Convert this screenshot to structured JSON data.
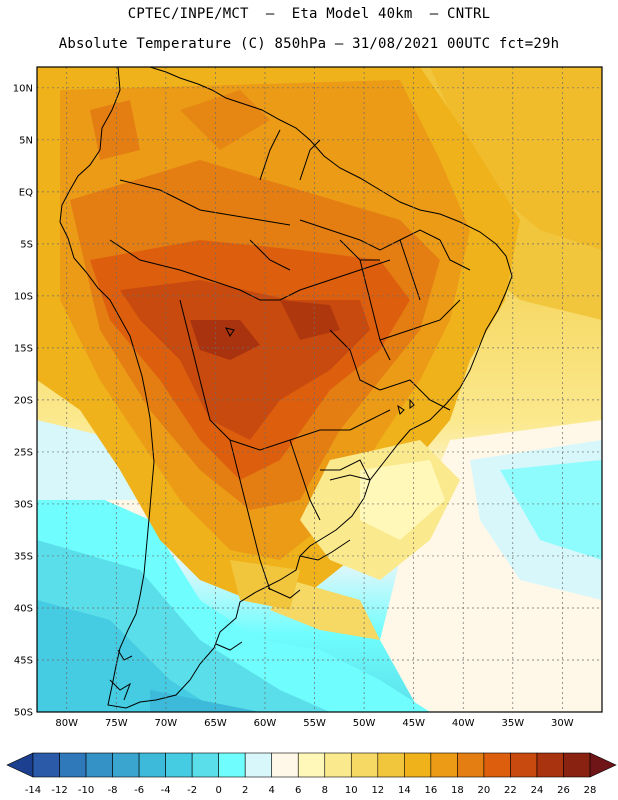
{
  "title": {
    "line1": "CPTEC/INPE/MCT  –  Eta Model 40km  – CNTRL",
    "line2": "Absolute Temperature (C) 850hPa – 31/08/2021 00UTC fct=29h"
  },
  "map": {
    "lat_labels": [
      "10N",
      "5N",
      "EQ",
      "5S",
      "10S",
      "15S",
      "20S",
      "25S",
      "30S",
      "35S",
      "40S",
      "45S",
      "50S"
    ],
    "lon_labels": [
      "80W",
      "75W",
      "70W",
      "65W",
      "60W",
      "55W",
      "50W",
      "45W",
      "40W",
      "35W",
      "30W"
    ],
    "lat_range": [
      -50,
      12
    ],
    "lon_range": [
      -83,
      -26
    ]
  },
  "colorbar": {
    "tick_labels": [
      "-14",
      "-12",
      "-10",
      "-8",
      "-6",
      "-4",
      "-2",
      "0",
      "2",
      "4",
      "6",
      "8",
      "10",
      "12",
      "14",
      "16",
      "18",
      "20",
      "22",
      "24",
      "26",
      "28"
    ],
    "colors": [
      "#1d3f8f",
      "#2a5aa8",
      "#2f78ba",
      "#3592c6",
      "#3aa6cf",
      "#3db9d9",
      "#45cbe2",
      "#5adfea",
      "#6ffdfd",
      "#d8f7fb",
      "#fff8e8",
      "#fff8b8",
      "#fbe98e",
      "#f6d864",
      "#f2c63c",
      "#efb21b",
      "#eb9b16",
      "#e47e12",
      "#dd5f0d",
      "#c84a0e",
      "#a9320f",
      "#8a2212",
      "#6f1517"
    ]
  }
}
